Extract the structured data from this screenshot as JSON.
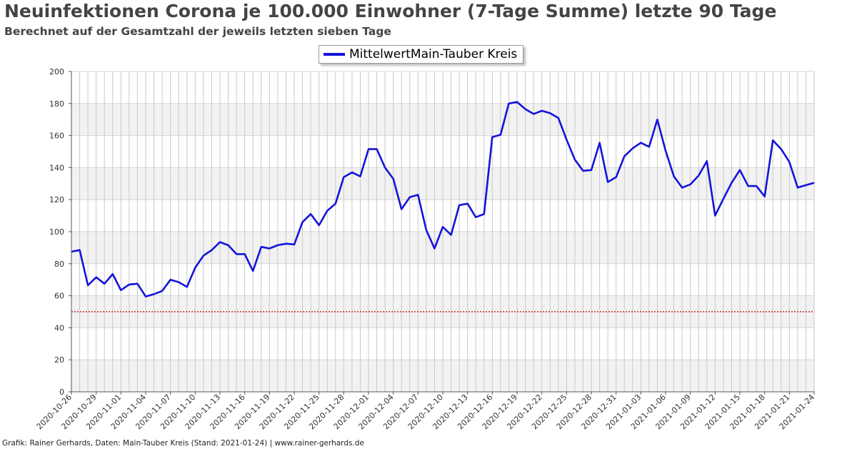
{
  "title": "Neuinfektionen Corona je 100.000 Einwohner (7-Tage Summe) letzte 90 Tage",
  "subtitle": "Berechnet auf der Gesamtzahl der jeweils letzten sieben Tage",
  "footer": "Grafik: Rainer Gerhards, Daten: Main-Tauber Kreis (Stand: 2021-01-24) | www.rainer-gerhards.de",
  "colors": {
    "series": "#1414dc",
    "threshold": "#b40000",
    "band": "#f2f2f2"
  },
  "chart_data": {
    "type": "line",
    "title": "Neuinfektionen Corona je 100.000 Einwohner (7-Tage Summe) letzte 90 Tage",
    "subtitle": "Berechnet auf der Gesamtzahl der jeweils letzten sieben Tage",
    "xlabel": "",
    "ylabel": "",
    "ylim": [
      0,
      200
    ],
    "yticks": [
      0,
      20,
      40,
      60,
      80,
      100,
      120,
      140,
      160,
      180,
      200
    ],
    "x_start": "2020-10-26",
    "x_end": "2021-01-24",
    "xtick_labels": [
      "2020-10-26",
      "2020-10-29",
      "2020-11-01",
      "2020-11-04",
      "2020-11-07",
      "2020-11-10",
      "2020-11-13",
      "2020-11-16",
      "2020-11-19",
      "2020-11-22",
      "2020-11-25",
      "2020-11-28",
      "2020-12-01",
      "2020-12-04",
      "2020-12-07",
      "2020-12-10",
      "2020-12-13",
      "2020-12-16",
      "2020-12-19",
      "2020-12-22",
      "2020-12-25",
      "2020-12-28",
      "2020-12-31",
      "2021-01-03",
      "2021-01-06",
      "2021-01-09",
      "2021-01-12",
      "2021-01-15",
      "2021-01-18",
      "2021-01-21",
      "2021-01-24"
    ],
    "grid": true,
    "legend_position": "top-center",
    "threshold": 50,
    "series": [
      {
        "name": "MittelwertMain-Tauber Kreis",
        "values": [
          87.5,
          88.5,
          66.5,
          71.5,
          67.5,
          73.5,
          63.5,
          67,
          67.5,
          59.5,
          61,
          63,
          70,
          68.5,
          65.5,
          77.5,
          85,
          88.5,
          93.5,
          91.5,
          86,
          86,
          75.5,
          90.5,
          89.5,
          91.5,
          92.5,
          92,
          106,
          111,
          104,
          113,
          117.5,
          134,
          137,
          134.5,
          151.5,
          151.5,
          140,
          133,
          114,
          121.5,
          123,
          101,
          89.5,
          103,
          98,
          116.5,
          117.5,
          109,
          111,
          159,
          160.5,
          180,
          181,
          176.5,
          173.5,
          175.5,
          174,
          171,
          157.5,
          145,
          138,
          138.5,
          155.5,
          131,
          134,
          147,
          152,
          155.5,
          153,
          170,
          150.5,
          134.5,
          127.5,
          129.5,
          135,
          144,
          110,
          120.5,
          130.5,
          138.5,
          128.5,
          128.5,
          122,
          157,
          151.5,
          143.5,
          127.5,
          129,
          130.5
        ]
      }
    ]
  }
}
